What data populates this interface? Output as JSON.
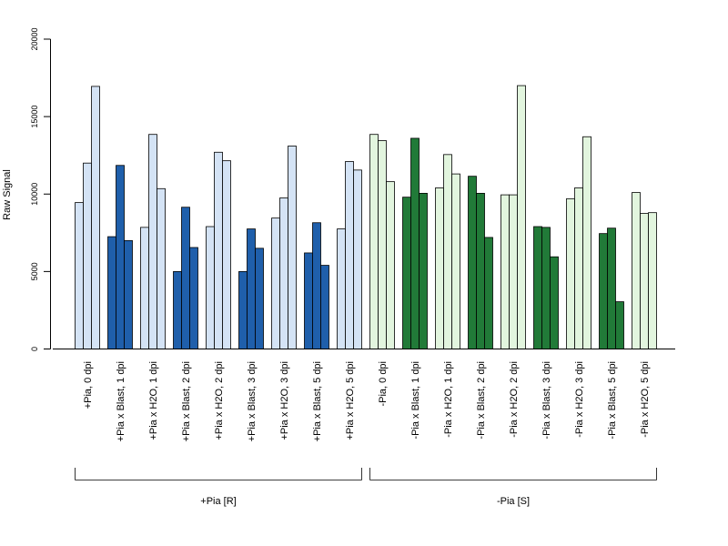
{
  "chart_data": {
    "type": "bar",
    "ylabel": "Raw Signal",
    "xlabel": "",
    "ylim": [
      0,
      20000
    ],
    "yticks": [
      0,
      5000,
      10000,
      15000,
      20000
    ],
    "grid": false,
    "bars_per_category": 3,
    "categories": [
      "+Pia, 0 dpi",
      "+Pia x Blast, 1 dpi",
      "+Pia x H2O, 1 dpi",
      "+Pia x Blast, 2 dpi",
      "+Pia x H2O, 2 dpi",
      "+Pia x Blast, 3 dpi",
      "+Pia x H2O, 3 dpi",
      "+Pia x Blast, 5 dpi",
      "+Pia x H2O, 5 dpi",
      "-Pia, 0 dpi",
      "-Pia x Blast, 1 dpi",
      "-Pia x H2O, 1 dpi",
      "-Pia x Blast, 2 dpi",
      "-Pia x H2O, 2 dpi",
      "-Pia x Blast, 3 dpi",
      "-Pia x H2O, 3 dpi",
      "-Pia x Blast, 5 dpi",
      "-Pia x H2O, 5 dpi"
    ],
    "values": [
      [
        9450,
        12000,
        16950
      ],
      [
        7250,
        11850,
        7000
      ],
      [
        7850,
        13850,
        10350
      ],
      [
        5000,
        9150,
        6550
      ],
      [
        7900,
        12700,
        12150
      ],
      [
        5000,
        7750,
        6500
      ],
      [
        8450,
        9750,
        13100
      ],
      [
        6200,
        8150,
        5400
      ],
      [
        7750,
        12100,
        11550
      ],
      [
        13850,
        13450,
        10800
      ],
      [
        9800,
        13600,
        10050
      ],
      [
        10400,
        12550,
        11300
      ],
      [
        11150,
        10050,
        7200
      ],
      [
        9950,
        9950,
        17000
      ],
      [
        7900,
        7850,
        5950
      ],
      [
        9700,
        10400,
        13700
      ],
      [
        7450,
        7800,
        3050
      ],
      [
        10100,
        8750,
        8800
      ]
    ],
    "colors": [
      "#d4e3f5",
      "#1f5fab",
      "#d4e3f5",
      "#1f5fab",
      "#d4e3f5",
      "#1f5fab",
      "#d4e3f5",
      "#1f5fab",
      "#d4e3f5",
      "#e2f5de",
      "#217a38",
      "#e2f5de",
      "#217a38",
      "#e2f5de",
      "#217a38",
      "#e2f5de",
      "#217a38",
      "#e2f5de"
    ],
    "groups": [
      {
        "label": "+Pia [R]",
        "from": 0,
        "to": 8
      },
      {
        "label": "-Pia [S]",
        "from": 9,
        "to": 17
      }
    ]
  }
}
